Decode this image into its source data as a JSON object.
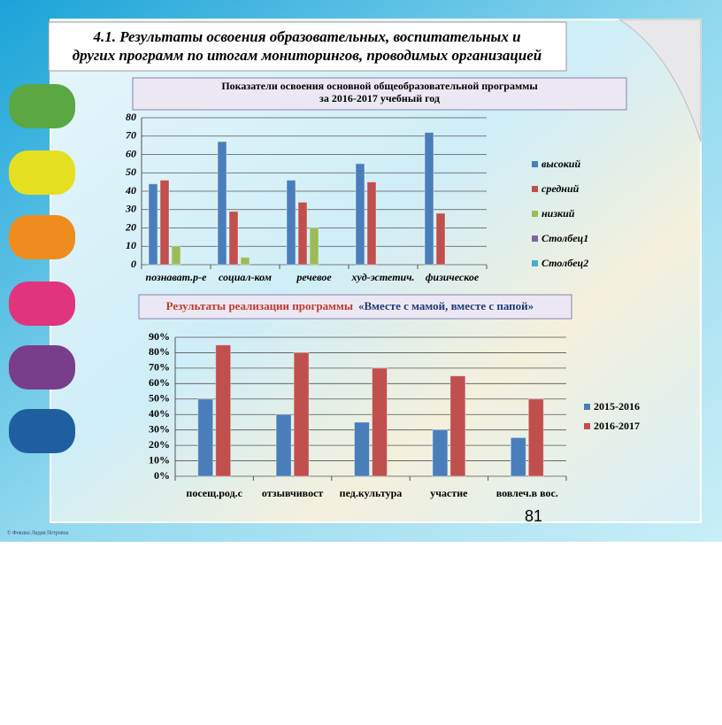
{
  "header": {
    "title_lines": [
      "4.1. Результаты освоения образовательных, воспитательных и",
      "других программ по  итогам мониторингов, проводимых организацией"
    ]
  },
  "page_number": "81",
  "copyright": "© Фокина Лидия Петровна",
  "chart_data": [
    {
      "type": "bar",
      "title": "Показатели  освоения  основной  общеобразовательной  программы",
      "subtitle": "за 2016-2017 учебный  год",
      "categories": [
        "познават.р-е",
        "социал-ком",
        "речевое",
        "худ-эстетич.",
        "физическое"
      ],
      "series": [
        {
          "name": "высокий",
          "color": "#4a7ebb",
          "values": [
            44,
            67,
            46,
            55,
            72
          ]
        },
        {
          "name": "средний",
          "color": "#c0504d",
          "values": [
            46,
            29,
            34,
            45,
            28
          ]
        },
        {
          "name": "низкий",
          "color": "#9bbb59",
          "values": [
            10,
            4,
            20,
            null,
            null
          ]
        },
        {
          "name": "Столбец1",
          "color": "#8064a2",
          "values": [
            null,
            null,
            null,
            null,
            null
          ]
        },
        {
          "name": "Столбец2",
          "color": "#4bacc6",
          "values": [
            null,
            null,
            null,
            null,
            null
          ]
        }
      ],
      "ylim": [
        0,
        80
      ],
      "yticks": [
        0,
        10,
        20,
        30,
        40,
        50,
        60,
        70,
        80
      ],
      "grid": true
    },
    {
      "type": "bar",
      "title": "Результаты реализации программы",
      "subtitle": "«Вместе с мамой, вместе с папой»",
      "categories": [
        "посещ.род.с",
        "отзывчивост",
        "пед.культура",
        "участие",
        "вовлеч.в вос."
      ],
      "series": [
        {
          "name": "2015-2016",
          "color": "#4a7ebb",
          "values": [
            50,
            40,
            35,
            30,
            25
          ]
        },
        {
          "name": "2016-2017",
          "color": "#c0504d",
          "values": [
            85,
            80,
            70,
            65,
            50
          ]
        }
      ],
      "ylim": [
        0,
        90
      ],
      "yticks": [
        {
          "value": 0,
          "label": "0%"
        },
        {
          "value": 10,
          "label": "10%"
        },
        {
          "value": 20,
          "label": "20%"
        },
        {
          "value": 30,
          "label": "30%"
        },
        {
          "value": 40,
          "label": "40%"
        },
        {
          "value": 50,
          "label": "50%"
        },
        {
          "value": 60,
          "label": "60%"
        },
        {
          "value": 70,
          "label": "70%"
        },
        {
          "value": 80,
          "label": "80%"
        },
        {
          "value": 90,
          "label": "90%"
        }
      ],
      "grid": true
    }
  ]
}
